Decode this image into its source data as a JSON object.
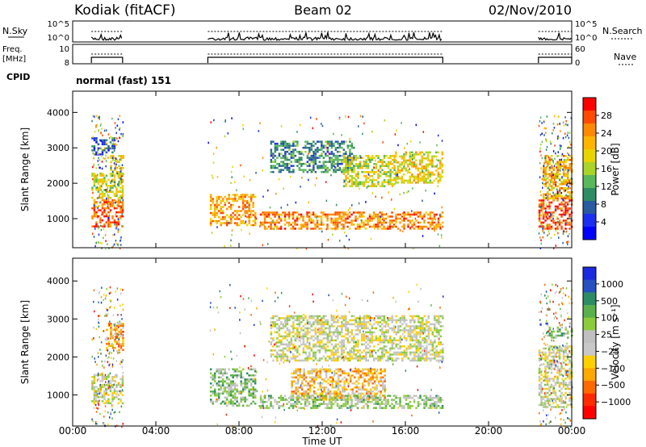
{
  "header": {
    "station": "Kodiak (fitACF)",
    "beam": "Beam 02",
    "date": "02/Nov/2010"
  },
  "labels": {
    "nsky": "N.Sky",
    "freq_line1": "Freq.",
    "freq_line2": "[MHz]",
    "cpid": "CPID",
    "nsearch": "N.Search",
    "nave": "Nave",
    "cpid_program": "normal (fast) 151"
  },
  "chart_data": [
    {
      "type": "line",
      "name": "noise-strip",
      "left_ticks": [
        "10^5",
        "10^0"
      ],
      "right_ticks": [
        "10^5",
        "10^0"
      ],
      "data_spans_ut": [
        [
          0.9,
          2.4
        ],
        [
          6.5,
          17.8
        ],
        [
          22.4,
          24.0
        ]
      ]
    },
    {
      "type": "line",
      "name": "freq-nave-strip",
      "left_ticks": [
        "10",
        "8"
      ],
      "right_ticks": [
        "60",
        "0"
      ],
      "data_spans_ut": [
        [
          0.9,
          2.4
        ],
        [
          6.5,
          17.8
        ],
        [
          22.4,
          24.0
        ]
      ]
    },
    {
      "type": "heatmap",
      "name": "power-panel",
      "ylabel": "Slant Range [km]",
      "ylim": [
        180,
        4600
      ],
      "yticks": [
        1000,
        2000,
        3000,
        4000
      ],
      "xlim": [
        0,
        24
      ],
      "colorbar_label": "Power [dB]",
      "colorbar_ticks": [
        "28",
        "24",
        "20",
        "16",
        "12",
        "8",
        "4"
      ],
      "colorbar_colors": [
        "#ff0000",
        "#ff4a00",
        "#ff8a00",
        "#ffb400",
        "#e8d400",
        "#aad428",
        "#58b85a",
        "#2e8c64",
        "#2a5aa0",
        "#1c2ef0",
        "#0000ff"
      ],
      "bands": [
        {
          "t0": 0.9,
          "t1": 2.4,
          "r0": 800,
          "r1": 1550,
          "lvl": 0.88
        },
        {
          "t0": 0.9,
          "t1": 2.4,
          "r0": 1600,
          "r1": 2300,
          "lvl": 0.55
        },
        {
          "t0": 1.8,
          "t1": 2.4,
          "r0": 2200,
          "r1": 2800,
          "lvl": 0.6
        },
        {
          "t0": 0.9,
          "t1": 2.0,
          "r0": 2800,
          "r1": 3300,
          "lvl": 0.2
        },
        {
          "t0": 6.6,
          "t1": 8.8,
          "r0": 800,
          "r1": 1700,
          "lvl": 0.75
        },
        {
          "t0": 9.5,
          "t1": 13.5,
          "r0": 2300,
          "r1": 3200,
          "lvl": 0.3
        },
        {
          "t0": 13.0,
          "t1": 15.5,
          "r0": 1900,
          "r1": 2800,
          "lvl": 0.55
        },
        {
          "t0": 15.5,
          "t1": 17.8,
          "r0": 2000,
          "r1": 2900,
          "lvl": 0.6
        },
        {
          "t0": 9.0,
          "t1": 17.8,
          "r0": 700,
          "r1": 1200,
          "lvl": 0.8
        },
        {
          "t0": 22.4,
          "t1": 24.0,
          "r0": 700,
          "r1": 1600,
          "lvl": 0.92
        },
        {
          "t0": 22.6,
          "t1": 24.0,
          "r0": 1600,
          "r1": 2800,
          "lvl": 0.7
        }
      ]
    },
    {
      "type": "heatmap",
      "name": "velocity-panel",
      "ylabel": "Slant Range [km]",
      "ylim": [
        180,
        4600
      ],
      "yticks": [
        1000,
        2000,
        3000,
        4000
      ],
      "xlim": [
        0,
        24
      ],
      "xticks": [
        "00:00",
        "04:00",
        "08:00",
        "12:00",
        "16:00",
        "20:00",
        "00:00"
      ],
      "xlabel": "Time UT",
      "colorbar_label": "Velocity [m s⁻¹]",
      "colorbar_ticks": [
        "1000",
        "500",
        "100",
        "25",
        "−25",
        "−100",
        "−500",
        "−1000"
      ],
      "colorbar_colors": [
        "#1b2ae0",
        "#2850c0",
        "#2e8c64",
        "#5ab04a",
        "#8ccc3c",
        "#c0c0c0",
        "#c8c8c8",
        "#ffd000",
        "#ffa800",
        "#ff6a00",
        "#ff2a00",
        "#ff0000"
      ],
      "bands": [
        {
          "t0": 0.9,
          "t1": 2.4,
          "r0": 800,
          "r1": 1550,
          "lvl": 0.5
        },
        {
          "t0": 1.6,
          "t1": 2.4,
          "r0": 2200,
          "r1": 2900,
          "lvl": 0.3
        },
        {
          "t0": 6.6,
          "t1": 8.8,
          "r0": 700,
          "r1": 1700,
          "lvl": 0.65
        },
        {
          "t0": 9.5,
          "t1": 17.8,
          "r0": 1900,
          "r1": 3100,
          "lvl": 0.5
        },
        {
          "t0": 10.5,
          "t1": 15.0,
          "r0": 900,
          "r1": 1700,
          "lvl": 0.35
        },
        {
          "t0": 9.0,
          "t1": 17.8,
          "r0": 650,
          "r1": 1000,
          "lvl": 0.62
        },
        {
          "t0": 22.4,
          "t1": 24.0,
          "r0": 700,
          "r1": 2300,
          "lvl": 0.5
        },
        {
          "t0": 22.8,
          "t1": 24.0,
          "r0": 2500,
          "r1": 2800,
          "lvl": 0.66
        }
      ]
    }
  ]
}
